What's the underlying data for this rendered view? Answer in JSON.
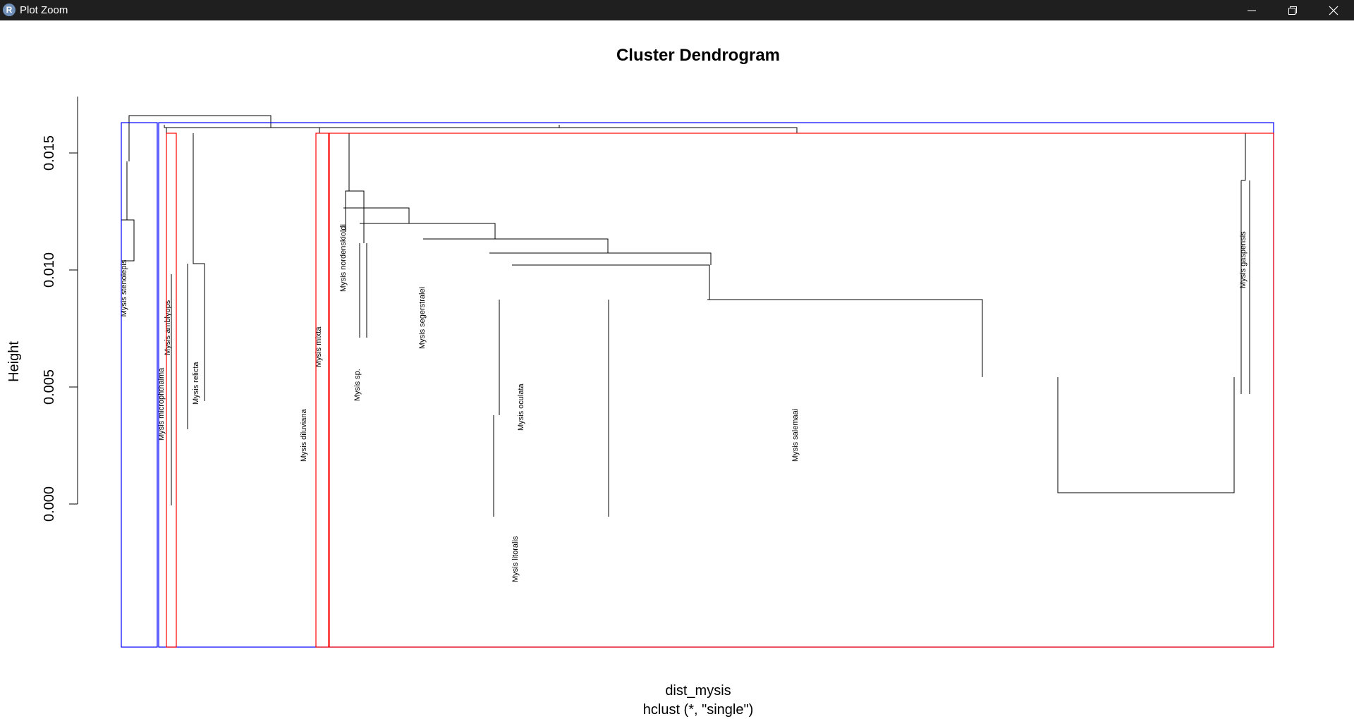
{
  "window": {
    "title": "Plot Zoom",
    "app_icon_letter": "R",
    "icons": {
      "app": "r-logo-icon",
      "minimize": "minimize-icon",
      "maximize": "maximize-icon",
      "close": "close-icon"
    },
    "titlebar_color": "#1f1f1f"
  },
  "plot": {
    "title": "Cluster Dendrogram",
    "ylabel": "Height",
    "xlabel": "dist_mysis",
    "sublabel": "hclust (*, \"single\")",
    "yticks": [
      "0.000",
      "0.005",
      "0.010",
      "0.015"
    ],
    "rect_colors": {
      "blue": "#0000ff",
      "red": "#ff0000",
      "tree": "#000000"
    }
  },
  "chart_data": {
    "type": "dendrogram",
    "title": "Cluster Dendrogram",
    "ylabel": "Height",
    "xlabel": "dist_mysis",
    "sub": "hclust (*, \"single\")",
    "ylim": [
      0,
      0.017
    ],
    "yticks": [
      0,
      0.005,
      0.01,
      0.015
    ],
    "visible_labels": [
      "Mysis stenolepis",
      "Mysis microphthalma",
      "Mysis amblyops",
      "Mysis relicta",
      "Mysis diluviana",
      "Mysis mixta",
      "Mysis nordenskioldi",
      "Mysis segerstralei",
      "Mysis litoralis",
      "Mysis oculata",
      "Mysis salemaai",
      "Mysis gaspensis",
      "Mysis sp."
    ],
    "top_merges": [
      {
        "label": "Mysis stenolepis",
        "height": 0.0122
      },
      {
        "label": "Mysis nordenskioldi",
        "height": 0.0134
      },
      {
        "label": "Mysis gaspensis",
        "height": 0.0139
      },
      {
        "label": "root",
        "height": 0.0166
      }
    ]
  }
}
